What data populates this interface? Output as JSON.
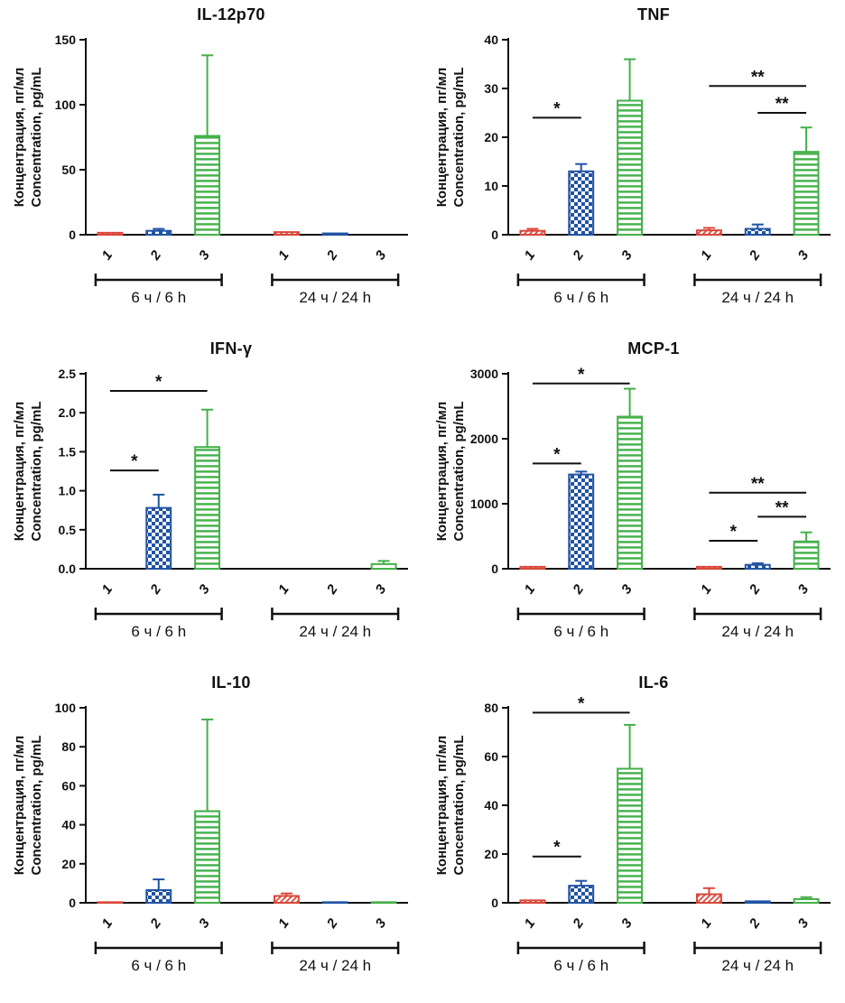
{
  "figure": {
    "background": "#ffffff",
    "axis_color": "#111111",
    "series_colors": {
      "1": "#d9473a",
      "2": "#2053a4",
      "3": "#43b04a"
    },
    "series_patterns": {
      "1": "diagonal-hatch",
      "2": "checkerboard",
      "3": "horizontal-lines"
    }
  },
  "chart_data": [
    {
      "type": "bar",
      "title": "IL-12p70",
      "ylabel_ru": "Концентрация, пг/мл",
      "ylabel_en": "Concentration, pg/mL",
      "ylim": [
        0,
        150
      ],
      "yticks": [
        0,
        50,
        100,
        150
      ],
      "ytick_labels": [
        "0",
        "50",
        "100",
        "150"
      ],
      "categories": [
        "1",
        "2",
        "3"
      ],
      "groups": [
        "6 ч / 6 h",
        "24 ч / 24 h"
      ],
      "series": [
        {
          "group": "6 ч / 6 h",
          "values": [
            1.5,
            3,
            76
          ],
          "errors": [
            0.8,
            1.5,
            62
          ]
        },
        {
          "group": "24 ч / 24 h",
          "values": [
            2,
            1,
            0.4
          ],
          "errors": [
            1,
            0.6,
            0.3
          ]
        }
      ],
      "significance": []
    },
    {
      "type": "bar",
      "title": "TNF",
      "ylabel_ru": "Концентрация, пг/мл",
      "ylabel_en": "Concentration, pg/mL",
      "ylim": [
        0,
        40
      ],
      "yticks": [
        0,
        10,
        20,
        30,
        40
      ],
      "ytick_labels": [
        "0",
        "10",
        "20",
        "30",
        "40"
      ],
      "categories": [
        "1",
        "2",
        "3"
      ],
      "groups": [
        "6 ч / 6 h",
        "24 ч / 24 h"
      ],
      "series": [
        {
          "group": "6 ч / 6 h",
          "values": [
            0.8,
            13,
            27.5
          ],
          "errors": [
            0.4,
            1.5,
            8.5
          ]
        },
        {
          "group": "24 ч / 24 h",
          "values": [
            0.9,
            1.2,
            17
          ],
          "errors": [
            0.5,
            0.9,
            5
          ]
        }
      ],
      "significance": [
        {
          "group": 0,
          "from": 0,
          "to": 1,
          "label": "*",
          "y": 24
        },
        {
          "group": 1,
          "from": 0,
          "to": 2,
          "label": "**",
          "y": 30.5
        },
        {
          "group": 1,
          "from": 1,
          "to": 2,
          "label": "**",
          "y": 25
        }
      ]
    },
    {
      "type": "bar",
      "title": "IFN-γ",
      "ylabel_ru": "Концентрация, пг/мл",
      "ylabel_en": "Concentration, pg/mL",
      "ylim": [
        0,
        2.5
      ],
      "yticks": [
        0,
        0.5,
        1.0,
        1.5,
        2.0,
        2.5
      ],
      "ytick_labels": [
        "0.0",
        "0.5",
        "1.0",
        "1.5",
        "2.0",
        "2.5"
      ],
      "categories": [
        "1",
        "2",
        "3"
      ],
      "groups": [
        "6 ч / 6 h",
        "24 ч / 24 h"
      ],
      "series": [
        {
          "group": "6 ч / 6 h",
          "values": [
            0,
            0.78,
            1.56
          ],
          "errors": [
            0,
            0.17,
            0.48
          ]
        },
        {
          "group": "24 ч / 24 h",
          "values": [
            0,
            0,
            0.06
          ],
          "errors": [
            0,
            0,
            0.04
          ]
        }
      ],
      "significance": [
        {
          "group": 0,
          "from": 0,
          "to": 2,
          "label": "*",
          "y": 2.28
        },
        {
          "group": 0,
          "from": 0,
          "to": 1,
          "label": "*",
          "y": 1.26
        }
      ]
    },
    {
      "type": "bar",
      "title": "MCP-1",
      "ylabel_ru": "Концентрация, пг/мл",
      "ylabel_en": "Concentration, pg/mL",
      "ylim": [
        0,
        3000
      ],
      "yticks": [
        0,
        1000,
        2000,
        3000
      ],
      "ytick_labels": [
        "0",
        "1000",
        "2000",
        "3000"
      ],
      "categories": [
        "1",
        "2",
        "3"
      ],
      "groups": [
        "6 ч / 6 h",
        "24 ч / 24 h"
      ],
      "series": [
        {
          "group": "6 ч / 6 h",
          "values": [
            30,
            1450,
            2340
          ],
          "errors": [
            15,
            45,
            430
          ]
        },
        {
          "group": "24 ч / 24 h",
          "values": [
            30,
            60,
            420
          ],
          "errors": [
            15,
            25,
            140
          ]
        }
      ],
      "significance": [
        {
          "group": 0,
          "from": 0,
          "to": 2,
          "label": "*",
          "y": 2850
        },
        {
          "group": 0,
          "from": 0,
          "to": 1,
          "label": "*",
          "y": 1620
        },
        {
          "group": 1,
          "from": 0,
          "to": 2,
          "label": "**",
          "y": 1170
        },
        {
          "group": 1,
          "from": 1,
          "to": 2,
          "label": "**",
          "y": 800
        },
        {
          "group": 1,
          "from": 0,
          "to": 1,
          "label": "*",
          "y": 430
        }
      ]
    },
    {
      "type": "bar",
      "title": "IL-10",
      "ylabel_ru": "Концентрация, пг/мл",
      "ylabel_en": "Concentration, pg/mL",
      "ylim": [
        0,
        100
      ],
      "yticks": [
        0,
        20,
        40,
        60,
        80,
        100
      ],
      "ytick_labels": [
        "0",
        "20",
        "40",
        "60",
        "80",
        "100"
      ],
      "categories": [
        "1",
        "2",
        "3"
      ],
      "groups": [
        "6 ч / 6 h",
        "24 ч / 24 h"
      ],
      "series": [
        {
          "group": "6 ч / 6 h",
          "values": [
            0.3,
            6.5,
            47
          ],
          "errors": [
            0.2,
            5.5,
            47
          ]
        },
        {
          "group": "24 ч / 24 h",
          "values": [
            3.5,
            0.3,
            0.3
          ],
          "errors": [
            1.3,
            0.2,
            0.2
          ]
        }
      ],
      "significance": []
    },
    {
      "type": "bar",
      "title": "IL-6",
      "ylabel_ru": "Концентрация, пг/мл",
      "ylabel_en": "Concentration, pg/mL",
      "ylim": [
        0,
        80
      ],
      "yticks": [
        0,
        20,
        40,
        60,
        80
      ],
      "ytick_labels": [
        "0",
        "20",
        "40",
        "60",
        "80"
      ],
      "categories": [
        "1",
        "2",
        "3"
      ],
      "groups": [
        "6 ч / 6 h",
        "24 ч / 24 h"
      ],
      "series": [
        {
          "group": "6 ч / 6 h",
          "values": [
            1,
            7,
            55
          ],
          "errors": [
            0.5,
            2,
            18
          ]
        },
        {
          "group": "24 ч / 24 h",
          "values": [
            3.5,
            0.6,
            1.5
          ],
          "errors": [
            2.5,
            0.4,
            0.8
          ]
        }
      ],
      "significance": [
        {
          "group": 0,
          "from": 0,
          "to": 2,
          "label": "*",
          "y": 78
        },
        {
          "group": 0,
          "from": 0,
          "to": 1,
          "label": "*",
          "y": 19
        }
      ]
    }
  ]
}
